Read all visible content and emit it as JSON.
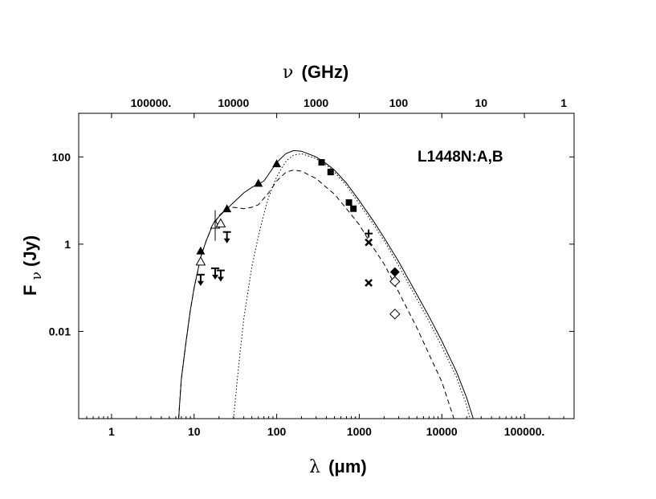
{
  "chart_data": {
    "type": "scatter",
    "object_label": "L1448N:A,B",
    "x_axis": {
      "title_symbol": "λ",
      "title_unit": "(μm)",
      "scale": "log",
      "range": [
        0.4,
        400000
      ],
      "ticks": [
        1,
        10,
        100,
        1000,
        10000,
        100000
      ],
      "tick_labels": [
        "1",
        "10",
        "100",
        "1000",
        "10000",
        "100000."
      ]
    },
    "x_axis_top": {
      "title_symbol": "ν",
      "title_unit": "(GHz)",
      "scale": "log",
      "ticks_ghz": [
        100000,
        10000,
        1000,
        100,
        10,
        1
      ],
      "tick_labels": [
        "100000.",
        "10000",
        "1000",
        "100",
        "10",
        "1"
      ]
    },
    "y_axis": {
      "title_main": "F",
      "title_sub": "ν",
      "title_unit": "(Jy)",
      "scale": "log",
      "range": [
        0.0001,
        1000
      ],
      "ticks": [
        0.01,
        1,
        100
      ],
      "tick_labels": [
        "0.01",
        "1",
        "100"
      ]
    },
    "grid": false,
    "series": [
      {
        "marker": "filled-triangle",
        "points": [
          [
            12,
            0.7
          ],
          [
            25,
            6.5
          ],
          [
            60,
            25
          ],
          [
            100,
            70
          ]
        ]
      },
      {
        "marker": "open-triangle",
        "points": [
          [
            12,
            0.4
          ],
          [
            18,
            2.8
          ],
          [
            21,
            3.0
          ]
        ]
      },
      {
        "marker": "filled-square",
        "points": [
          [
            350,
            75
          ],
          [
            450,
            45
          ],
          [
            750,
            9
          ],
          [
            850,
            6.5
          ]
        ]
      },
      {
        "marker": "filled-diamond",
        "points": [
          [
            2700,
            0.23
          ]
        ]
      },
      {
        "marker": "open-diamond",
        "points": [
          [
            2700,
            0.14
          ],
          [
            2700,
            0.025
          ]
        ]
      },
      {
        "marker": "cross-x",
        "points": [
          [
            1300,
            1.1
          ],
          [
            1300,
            0.13
          ]
        ]
      },
      {
        "marker": "plus",
        "points": [
          [
            1300,
            1.75
          ]
        ]
      },
      {
        "marker": "upper-limit",
        "points": [
          [
            12,
            0.2
          ],
          [
            18,
            0.28
          ],
          [
            21,
            0.25
          ],
          [
            25,
            1.9
          ]
        ]
      },
      {
        "marker": "errorbar",
        "points": [
          [
            18,
            2.8,
            1.2,
            6.0
          ]
        ]
      }
    ],
    "models": [
      {
        "style": "solid",
        "points": [
          [
            6.5,
            0.0001
          ],
          [
            7,
            0.0008
          ],
          [
            8,
            0.006
          ],
          [
            9,
            0.03
          ],
          [
            10,
            0.1
          ],
          [
            12,
            0.5
          ],
          [
            14,
            1.2
          ],
          [
            16,
            2.2
          ],
          [
            18,
            3.3
          ],
          [
            20,
            4.3
          ],
          [
            25,
            6.5
          ],
          [
            30,
            9
          ],
          [
            40,
            15
          ],
          [
            50,
            20
          ],
          [
            60,
            24
          ],
          [
            70,
            28
          ],
          [
            80,
            40
          ],
          [
            100,
            75
          ],
          [
            130,
            120
          ],
          [
            160,
            140
          ],
          [
            200,
            135
          ],
          [
            300,
            100
          ],
          [
            400,
            70
          ],
          [
            500,
            50
          ],
          [
            700,
            25
          ],
          [
            1000,
            10
          ],
          [
            1500,
            3.3
          ],
          [
            2000,
            1.4
          ],
          [
            3000,
            0.4
          ],
          [
            5000,
            0.07
          ],
          [
            7000,
            0.022
          ],
          [
            10000,
            0.006
          ],
          [
            15000,
            0.0012
          ],
          [
            20000,
            0.0003
          ],
          [
            24000,
            0.0001
          ]
        ]
      },
      {
        "style": "dashed",
        "points": [
          [
            6.5,
            0.0001
          ],
          [
            7,
            0.0008
          ],
          [
            8,
            0.006
          ],
          [
            9,
            0.03
          ],
          [
            10,
            0.1
          ],
          [
            12,
            0.5
          ],
          [
            14,
            1.2
          ],
          [
            16,
            2.2
          ],
          [
            18,
            3.3
          ],
          [
            20,
            4.5
          ],
          [
            25,
            6.5
          ],
          [
            30,
            7
          ],
          [
            40,
            6.5
          ],
          [
            50,
            7
          ],
          [
            60,
            8
          ],
          [
            80,
            15
          ],
          [
            100,
            28
          ],
          [
            130,
            45
          ],
          [
            160,
            50
          ],
          [
            200,
            47
          ],
          [
            300,
            32
          ],
          [
            400,
            20
          ],
          [
            500,
            14
          ],
          [
            700,
            6.5
          ],
          [
            1000,
            2.8
          ],
          [
            1500,
            0.8
          ],
          [
            2000,
            0.35
          ],
          [
            3000,
            0.08
          ],
          [
            5000,
            0.012
          ],
          [
            7000,
            0.003
          ],
          [
            10000,
            0.0007
          ],
          [
            14000,
            0.0001
          ]
        ]
      },
      {
        "style": "dotted",
        "points": [
          [
            30,
            0.0001
          ],
          [
            35,
            0.002
          ],
          [
            40,
            0.02
          ],
          [
            50,
            0.3
          ],
          [
            60,
            1.5
          ],
          [
            70,
            5
          ],
          [
            80,
            12
          ],
          [
            100,
            35
          ],
          [
            130,
            80
          ],
          [
            160,
            110
          ],
          [
            200,
            118
          ],
          [
            300,
            92
          ],
          [
            400,
            65
          ],
          [
            500,
            45
          ],
          [
            700,
            22
          ],
          [
            1000,
            8.5
          ],
          [
            1500,
            2.8
          ],
          [
            2000,
            1.2
          ],
          [
            3000,
            0.32
          ],
          [
            5000,
            0.055
          ],
          [
            7000,
            0.017
          ],
          [
            10000,
            0.0045
          ],
          [
            15000,
            0.0009
          ],
          [
            20000,
            0.0002
          ],
          [
            22000,
            0.0001
          ]
        ]
      }
    ]
  }
}
